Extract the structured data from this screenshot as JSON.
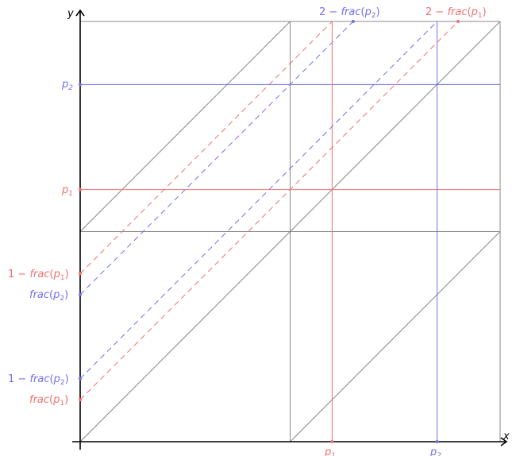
{
  "axes": {
    "x_label": "x",
    "y_label": "y"
  },
  "colors": {
    "red": "#f07070",
    "blue": "#7070f0",
    "grid": "#888888",
    "axis": "#000000"
  },
  "diagram": {
    "p1": 1.2,
    "p2": 1.7,
    "domain_max": 2
  },
  "labels": {
    "x_p1": {
      "base": "p",
      "sub": "1"
    },
    "x_p2": {
      "base": "p",
      "sub": "2"
    },
    "y_p1": {
      "base": "p",
      "sub": "1"
    },
    "y_p2": {
      "base": "p",
      "sub": "2"
    },
    "top_red": {
      "pre": "2 − ",
      "fn": "frac",
      "open": "(",
      "base": "p",
      "sub": "1",
      "close": ")"
    },
    "top_blue": {
      "pre": "2 − ",
      "fn": "frac",
      "open": "(",
      "base": "p",
      "sub": "2",
      "close": ")"
    },
    "left_red_upper": {
      "pre": "1 − ",
      "fn": "frac",
      "open": "(",
      "base": "p",
      "sub": "1",
      "close": ")"
    },
    "left_blue_upper": {
      "pre": "",
      "fn": "frac",
      "open": "(",
      "base": "p",
      "sub": "2",
      "close": ")"
    },
    "left_blue_lower": {
      "pre": "1 − ",
      "fn": "frac",
      "open": "(",
      "base": "p",
      "sub": "2",
      "close": ")"
    },
    "left_red_lower": {
      "pre": "",
      "fn": "frac",
      "open": "(",
      "base": "p",
      "sub": "1",
      "close": ")"
    }
  }
}
